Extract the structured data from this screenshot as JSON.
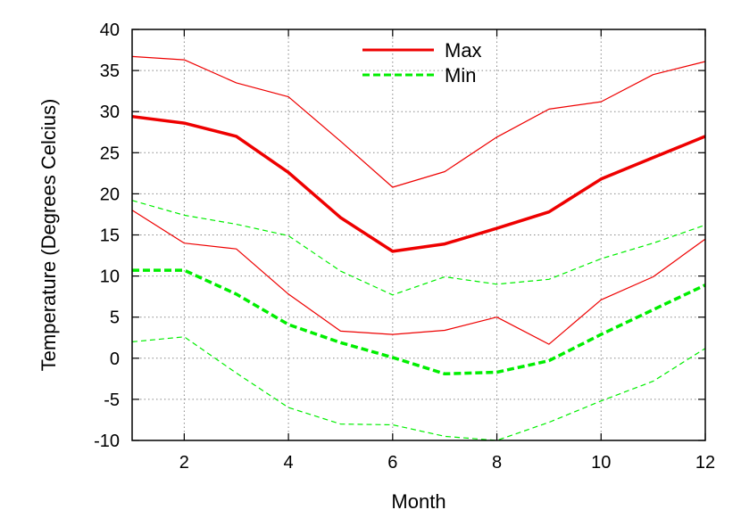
{
  "chart_data": {
    "type": "line",
    "title": "",
    "xlabel": "Month",
    "ylabel": "Temperature (Degrees Celcius)",
    "xlim": [
      1,
      12
    ],
    "ylim": [
      -10,
      40
    ],
    "xticks": [
      2,
      4,
      6,
      8,
      10,
      12
    ],
    "yticks": [
      -10,
      -5,
      0,
      5,
      10,
      15,
      20,
      25,
      30,
      35,
      40
    ],
    "grid": true,
    "legend_position": "top-center",
    "x": [
      1,
      2,
      3,
      4,
      5,
      6,
      7,
      8,
      9,
      10,
      11,
      12
    ],
    "series": [
      {
        "name": "Max",
        "role": "mean",
        "color": "#ee0000",
        "style": "solid",
        "width": "thick",
        "in_legend": true,
        "values": [
          29.4,
          28.6,
          27.0,
          22.6,
          17.1,
          13.0,
          13.9,
          15.8,
          17.8,
          21.8,
          24.4,
          27.0
        ]
      },
      {
        "name": "",
        "role": "upper-bound",
        "color": "#ee0000",
        "style": "solid",
        "width": "thin",
        "in_legend": false,
        "values": [
          36.7,
          36.3,
          33.5,
          31.8,
          26.4,
          20.8,
          22.7,
          26.9,
          30.3,
          31.2,
          34.5,
          36.1
        ]
      },
      {
        "name": "",
        "role": "lower-bound",
        "color": "#ee0000",
        "style": "solid",
        "width": "thin",
        "in_legend": false,
        "values": [
          18.0,
          14.0,
          13.3,
          7.8,
          3.3,
          2.9,
          3.4,
          5.0,
          1.7,
          7.1,
          9.9,
          14.5
        ]
      },
      {
        "name": "Min",
        "role": "mean",
        "color": "#00ee00",
        "style": "dashed",
        "width": "thick",
        "in_legend": true,
        "values": [
          10.7,
          10.7,
          7.8,
          4.1,
          1.9,
          0.1,
          -1.9,
          -1.7,
          -0.3,
          2.9,
          5.9,
          8.9
        ]
      },
      {
        "name": "",
        "role": "upper-bound",
        "color": "#00ee00",
        "style": "dashed",
        "width": "thin",
        "in_legend": false,
        "values": [
          19.2,
          17.4,
          16.3,
          14.9,
          10.6,
          7.7,
          9.9,
          9.0,
          9.6,
          12.1,
          14.0,
          16.2
        ]
      },
      {
        "name": "",
        "role": "lower-bound",
        "color": "#00ee00",
        "style": "dashed",
        "width": "thin",
        "in_legend": false,
        "values": [
          2.0,
          2.6,
          -1.8,
          -6.0,
          -8.0,
          -8.1,
          -9.5,
          -10.0,
          -7.8,
          -5.2,
          -2.8,
          1.2
        ]
      }
    ]
  }
}
